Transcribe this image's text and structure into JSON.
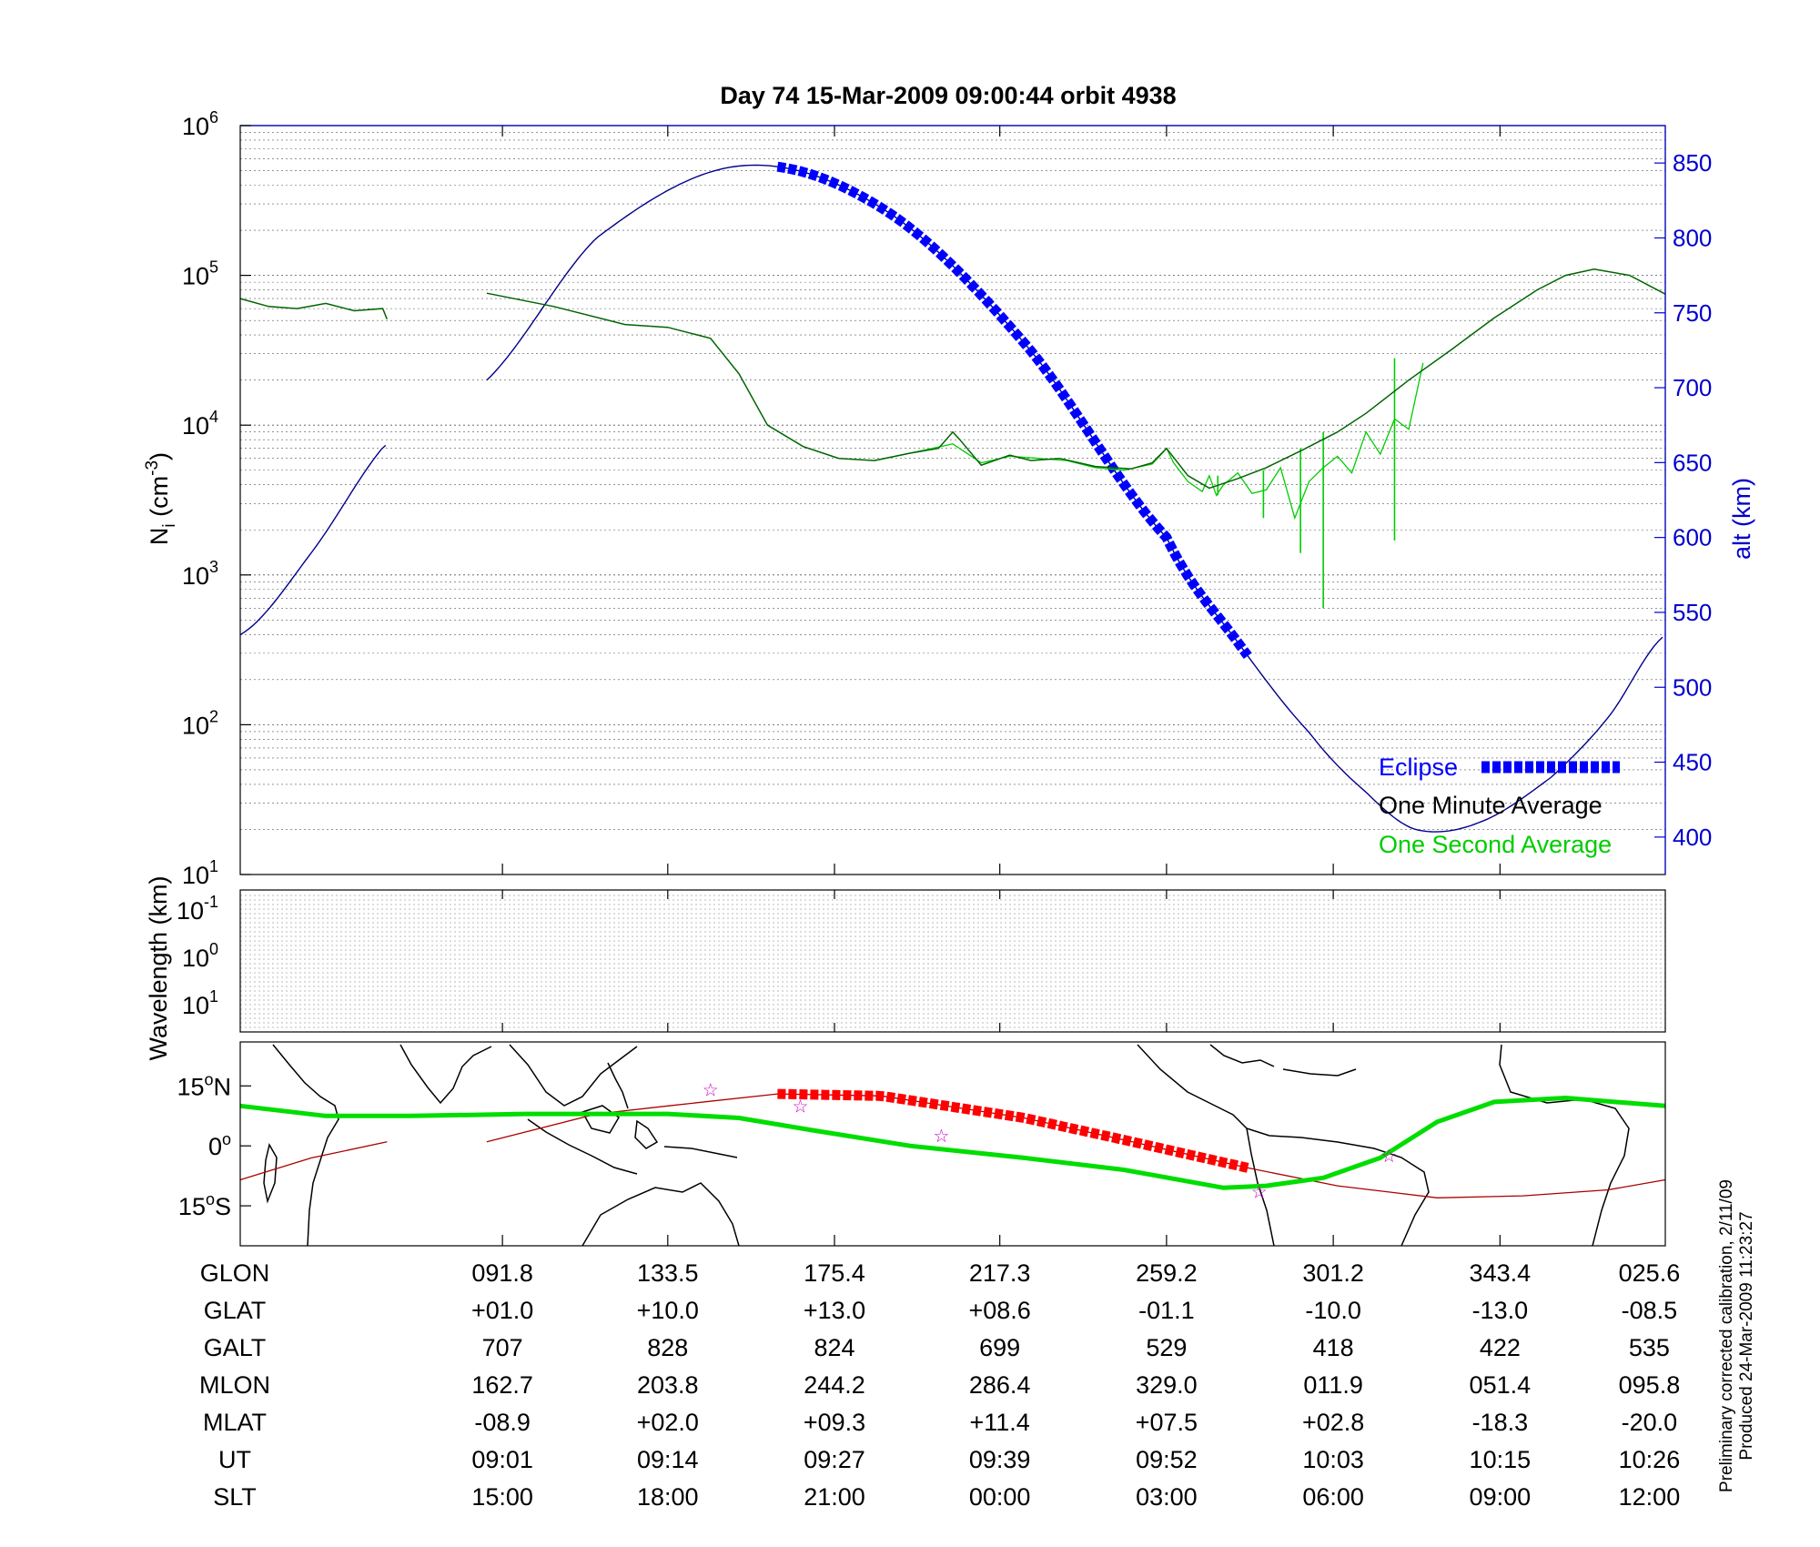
{
  "chart_data": [
    {
      "panel": "density",
      "type": "line",
      "title": "Day 74  15-Mar-2009 09:00:44   orbit 4938",
      "ylabel_left": {
        "base": "N",
        "sub": "i",
        "mid": " (cm",
        "sup": "-3",
        "end": ")"
      },
      "ylabel_right": "alt (km)",
      "yscale_left": "log",
      "ylim_left": [
        10,
        1000000
      ],
      "left_ticks": [
        {
          "base": "10",
          "exp": "1",
          "value": 10
        },
        {
          "base": "10",
          "exp": "2",
          "value": 100
        },
        {
          "base": "10",
          "exp": "3",
          "value": 1000
        },
        {
          "base": "10",
          "exp": "4",
          "value": 10000
        },
        {
          "base": "10",
          "exp": "5",
          "value": 100000
        },
        {
          "base": "10",
          "exp": "6",
          "value": 1000000
        }
      ],
      "ylim_right": [
        375,
        875
      ],
      "right_ticks": [
        "400",
        "450",
        "500",
        "550",
        "600",
        "650",
        "700",
        "750",
        "800",
        "850"
      ],
      "xlim": [
        0,
        1
      ],
      "x_ticks": [
        0.184,
        0.3,
        0.417,
        0.533,
        0.65,
        0.767,
        0.884
      ],
      "grid": true,
      "legend_position": "bottom-right",
      "legend": [
        "Eclipse",
        "One Minute Average",
        "One Second Average"
      ],
      "series": [
        {
          "name": "One Minute Average",
          "color": "#006400",
          "x": [
            0.0,
            0.02,
            0.04,
            0.06,
            0.08,
            0.1,
            0.103
          ],
          "y": [
            70000,
            62000,
            60000,
            65000,
            58000,
            60000,
            51000
          ]
        },
        {
          "name": "One Minute Average",
          "color": "#006400",
          "x": [
            0.173,
            0.22,
            0.27,
            0.3,
            0.33,
            0.35,
            0.37,
            0.395,
            0.42,
            0.445,
            0.47,
            0.49,
            0.5,
            0.505,
            0.52,
            0.54,
            0.555,
            0.575,
            0.6,
            0.625,
            0.64,
            0.65,
            0.665,
            0.68,
            0.7,
            0.72,
            0.745,
            0.77,
            0.79,
            0.82,
            0.85,
            0.88,
            0.91,
            0.93,
            0.95,
            0.975,
            1.0
          ],
          "y": [
            76000,
            62000,
            47000,
            45000,
            38000,
            22000,
            10000,
            7200,
            6000,
            5800,
            6500,
            7000,
            9000,
            8000,
            5400,
            6300,
            5800,
            6000,
            5300,
            5100,
            5600,
            7000,
            4600,
            3800,
            4400,
            5200,
            6800,
            9000,
            12000,
            20000,
            32000,
            52000,
            80000,
            100000,
            110000,
            100000,
            75000
          ]
        },
        {
          "name": "One Second Average",
          "color": "#00cc00",
          "x": [
            0.445,
            0.47,
            0.5,
            0.52,
            0.54,
            0.56,
            0.58,
            0.6,
            0.62,
            0.64,
            0.645,
            0.65,
            0.655,
            0.665,
            0.675,
            0.68,
            0.685,
            0.69,
            0.7,
            0.71,
            0.72,
            0.73,
            0.74,
            0.75,
            0.76,
            0.77,
            0.78,
            0.79,
            0.8,
            0.81,
            0.82,
            0.83
          ],
          "y": [
            5800,
            6500,
            7500,
            5600,
            6200,
            6000,
            5800,
            5200,
            5000,
            5500,
            6200,
            7000,
            5600,
            4200,
            3600,
            4600,
            3400,
            4000,
            4800,
            3500,
            3700,
            5200,
            2400,
            4200,
            5200,
            6200,
            4800,
            9000,
            6400,
            11000,
            9400,
            26000
          ]
        }
      ],
      "spikes": [
        {
          "x": 0.686,
          "y_top": 4600,
          "y_bottom": 3400
        },
        {
          "x": 0.718,
          "y_top": 5000,
          "y_bottom": 2400
        },
        {
          "x": 0.744,
          "y_top": 7000,
          "y_bottom": 1400
        },
        {
          "x": 0.76,
          "y_top": 9000,
          "y_bottom": 600
        },
        {
          "x": 0.81,
          "y_top": 28000,
          "y_bottom": 1700
        }
      ],
      "altitude": {
        "name": "GALT",
        "color": "#00008b",
        "gaps": [
          [
            0.103,
            0.173
          ]
        ],
        "points": [
          [
            0.0,
            535
          ],
          [
            0.05,
            590
          ],
          [
            0.1,
            660
          ],
          [
            0.173,
            705
          ],
          [
            0.25,
            800
          ],
          [
            0.35,
            848
          ],
          [
            0.45,
            820
          ],
          [
            0.55,
            730
          ],
          [
            0.65,
            600
          ],
          [
            0.7,
            530
          ],
          [
            0.75,
            470
          ],
          [
            0.79,
            430
          ],
          [
            0.825,
            405
          ],
          [
            0.87,
            410
          ],
          [
            0.92,
            440
          ],
          [
            0.96,
            480
          ],
          [
            1.0,
            535
          ]
        ]
      },
      "eclipse": {
        "name": "Eclipse",
        "color": "#0000ff",
        "x_start": 0.377,
        "x_end": 0.707
      }
    },
    {
      "panel": "wavelength",
      "type": "line",
      "ylabel": "Wavelength (km)",
      "y_ticks": [
        {
          "base": "10",
          "exp": "-1"
        },
        {
          "base": "10",
          "exp": "0"
        },
        {
          "base": "10",
          "exp": "1"
        }
      ],
      "grid": true,
      "series": []
    },
    {
      "panel": "map",
      "type": "line",
      "y_ticks": [
        {
          "deg": "15",
          "hemi": "N",
          "lat": 15
        },
        {
          "deg": "0",
          "hemi": "",
          "lat": 0
        },
        {
          "deg": "15",
          "hemi": "S",
          "lat": -15
        }
      ],
      "ylim": [
        -25,
        26
      ],
      "series": [
        {
          "name": "magnetic-equator",
          "color": "#00dd00",
          "x": [
            0.0,
            0.06,
            0.12,
            0.2,
            0.3,
            0.35,
            0.4,
            0.47,
            0.55,
            0.62,
            0.69,
            0.72,
            0.76,
            0.8,
            0.84,
            0.88,
            0.93,
            1.0
          ],
          "y": [
            10,
            7.5,
            7.5,
            8,
            8,
            7,
            4,
            0,
            -3,
            -6,
            -10.5,
            -10,
            -8,
            -3,
            6,
            11,
            12,
            10
          ]
        },
        {
          "name": "ground-track",
          "color": "#aa0000",
          "x": [
            0.0,
            0.05,
            0.103,
            0.173,
            0.25,
            0.3,
            0.377,
            0.45,
            0.55,
            0.62,
            0.707,
            0.77,
            0.84,
            0.9,
            0.96,
            1.0
          ],
          "y": [
            -8.5,
            -3,
            1,
            1,
            8,
            10,
            13,
            12.5,
            7,
            1.5,
            -5.5,
            -10,
            -13,
            -12.5,
            -11,
            -8.5
          ]
        }
      ],
      "track_gap": [
        0.103,
        0.173
      ],
      "eclipse_track": {
        "color": "#ff0000",
        "x_start": 0.377,
        "x_end": 0.707
      },
      "markers": [
        {
          "x": 0.33,
          "y": 14
        },
        {
          "x": 0.393,
          "y": 10
        },
        {
          "x": 0.492,
          "y": 2.5
        },
        {
          "x": 0.715,
          "y": -11.5
        },
        {
          "x": 0.806,
          "y": -2.5
        }
      ]
    }
  ],
  "table": {
    "row_labels": [
      "GLON",
      "GLAT",
      "GALT",
      "MLON",
      "MLAT",
      "UT",
      "SLT"
    ],
    "columns": [
      [
        "091.8",
        "+01.0",
        "707",
        "162.7",
        "-08.9",
        "09:01",
        "15:00"
      ],
      [
        "133.5",
        "+10.0",
        "828",
        "203.8",
        "+02.0",
        "09:14",
        "18:00"
      ],
      [
        "175.4",
        "+13.0",
        "824",
        "244.2",
        "+09.3",
        "09:27",
        "21:00"
      ],
      [
        "217.3",
        "+08.6",
        "699",
        "286.4",
        "+11.4",
        "09:39",
        "00:00"
      ],
      [
        "259.2",
        "-01.1",
        "529",
        "329.0",
        "+07.5",
        "09:52",
        "03:00"
      ],
      [
        "301.2",
        "-10.0",
        "418",
        "011.9",
        "+02.8",
        "10:03",
        "06:00"
      ],
      [
        "343.4",
        "-13.0",
        "422",
        "051.4",
        "-18.3",
        "10:15",
        "09:00"
      ],
      [
        "025.6",
        "-08.5",
        "535",
        "095.8",
        "-20.0",
        "10:26",
        "12:00"
      ]
    ]
  },
  "footer": {
    "line1": "Preliminary corrected calibration, 2/11/09",
    "line2": "Produced 24-Mar-2009 11:23:27"
  },
  "colors": {
    "eclipse": "#0000ff",
    "minute": "#006400",
    "second": "#00cc00",
    "altitude": "#00008b",
    "axis_right": "#0000cc",
    "map_equator": "#00dd00",
    "map_track": "#aa0000",
    "map_eclipse": "#ff0000",
    "marker": "#cc00cc"
  }
}
